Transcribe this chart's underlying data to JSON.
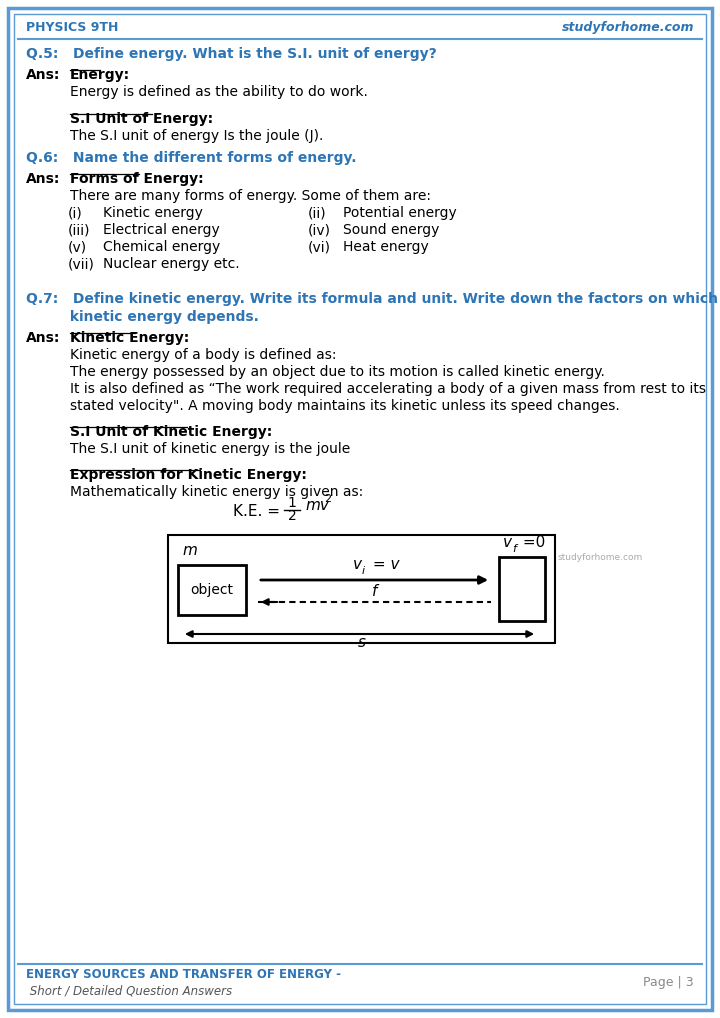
{
  "bg_color": "#ffffff",
  "border_color": "#5b9bd5",
  "header_left": "PHYSICS 9TH",
  "header_right": "studyforhome.com",
  "blue": "#2e75b6",
  "black": "#000000",
  "gray": "#888888",
  "footer_left1": "ENERGY SOURCES AND TRANSFER OF ENERGY -",
  "footer_left2": " Short / Detailed Question Answers",
  "footer_right": "Page | 3",
  "q5": "Q.5:   Define energy. What is the S.I. unit of energy?",
  "q5_heading": "Energy:",
  "q5_body1": "Energy is defined as the ability to do work.",
  "q5_si_heading": "S.I Unit of Energy:",
  "q5_si_body": "The S.I unit of energy Is the joule (J).",
  "q6": "Q.6:   Name the different forms of energy.",
  "q6_heading": "Forms of Energy:",
  "q6_body": "There are many forms of energy. Some of them are:",
  "q6_col1": [
    "(i)",
    "(iii)",
    "(v)",
    "(vii)"
  ],
  "q6_item1": [
    "Kinetic energy",
    "Electrical energy",
    "Chemical energy",
    "Nuclear energy etc."
  ],
  "q6_col2": [
    "(ii)",
    "(iv)",
    "(vi)",
    ""
  ],
  "q6_item2": [
    "Potential energy",
    "Sound energy",
    "Heat energy",
    ""
  ],
  "q7a": "Q.7:   Define kinetic energy. Write its formula and unit. Write down the factors on which",
  "q7b": "         kinetic energy depends.",
  "q7_heading": "Kinetic Energy:",
  "q7_body1": "Kinetic energy of a body is defined as:",
  "q7_body2": "The energy possessed by an object due to its motion is called kinetic energy.",
  "q7_body3": "It is also defined as “The work required accelerating a body of a given mass from rest to its",
  "q7_body4": "stated velocity\". A moving body maintains its kinetic unless its speed changes.",
  "q7_si_heading": "S.I Unit of Kinetic Energy:",
  "q7_si_body": "The S.I unit of kinetic energy is the joule",
  "q7_expr_heading": "Expression for Kinetic Energy:",
  "q7_expr_body": "Mathematically kinetic energy is given as:"
}
